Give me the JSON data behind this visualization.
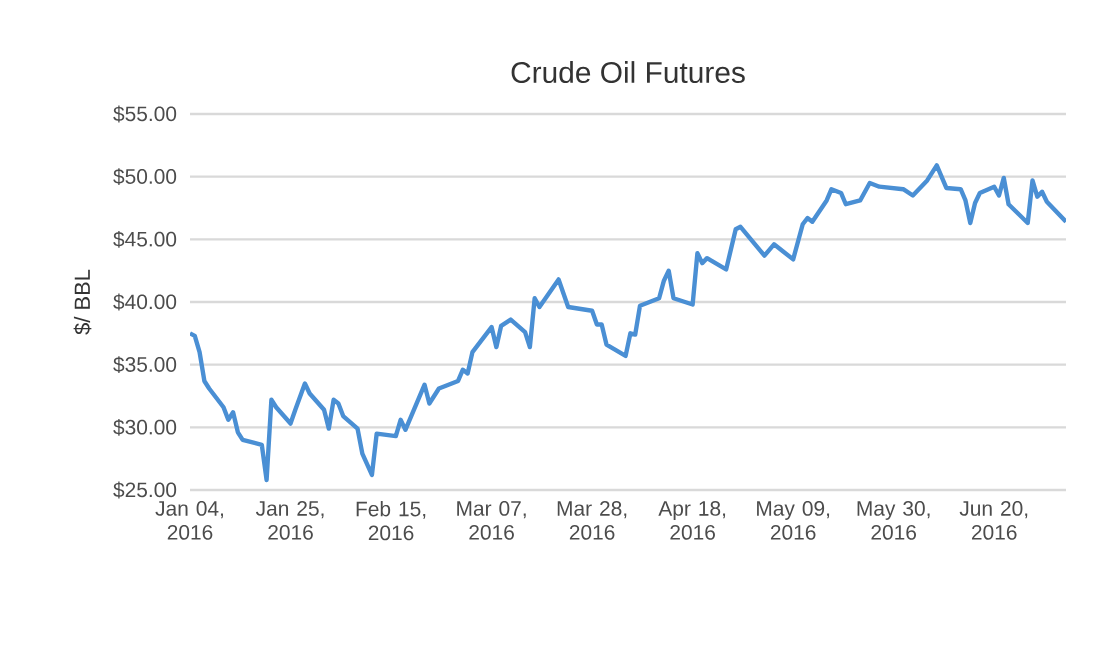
{
  "chart_data": {
    "type": "line",
    "title": "Crude Oil Futures",
    "ylabel": "$/ BBL",
    "xlim": [
      "2016-01-04",
      "2016-07-05"
    ],
    "ylim": [
      25,
      55
    ],
    "xticks": [
      {
        "value": "2016-01-04",
        "label": "Jan 04, 2016"
      },
      {
        "value": "2016-01-25",
        "label": "Jan 25, 2016"
      },
      {
        "value": "2016-02-15",
        "label": "Feb 15, 2016"
      },
      {
        "value": "2016-03-07",
        "label": "Mar 07, 2016"
      },
      {
        "value": "2016-03-28",
        "label": "Mar 28, 2016"
      },
      {
        "value": "2016-04-18",
        "label": "Apr 18, 2016"
      },
      {
        "value": "2016-05-09",
        "label": "May 09, 2016"
      },
      {
        "value": "2016-05-30",
        "label": "May 30, 2016"
      },
      {
        "value": "2016-06-20",
        "label": "Jun 20, 2016"
      }
    ],
    "yticks": [
      {
        "value": 25,
        "label": "$25.00"
      },
      {
        "value": 30,
        "label": "$30.00"
      },
      {
        "value": 35,
        "label": "$35.00"
      },
      {
        "value": 40,
        "label": "$40.00"
      },
      {
        "value": 45,
        "label": "$45.00"
      },
      {
        "value": 50,
        "label": "$50.00"
      },
      {
        "value": 55,
        "label": "$55.00"
      }
    ],
    "grid": "y",
    "line_style": "solid",
    "series": [
      {
        "color": "#4a8fd4",
        "x": [
          "2016-01-04",
          "2016-01-05",
          "2016-01-06",
          "2016-01-07",
          "2016-01-08",
          "2016-01-11",
          "2016-01-12",
          "2016-01-13",
          "2016-01-14",
          "2016-01-15",
          "2016-01-19",
          "2016-01-20",
          "2016-01-21",
          "2016-01-22",
          "2016-01-25",
          "2016-01-26",
          "2016-01-28",
          "2016-01-29",
          "2016-02-01",
          "2016-02-02",
          "2016-02-03",
          "2016-02-04",
          "2016-02-05",
          "2016-02-08",
          "2016-02-09",
          "2016-02-11",
          "2016-02-12",
          "2016-02-16",
          "2016-02-17",
          "2016-02-18",
          "2016-02-22",
          "2016-02-23",
          "2016-02-25",
          "2016-02-29",
          "2016-03-01",
          "2016-03-02",
          "2016-03-03",
          "2016-03-07",
          "2016-03-08",
          "2016-03-09",
          "2016-03-11",
          "2016-03-14",
          "2016-03-15",
          "2016-03-16",
          "2016-03-17",
          "2016-03-21",
          "2016-03-23",
          "2016-03-28",
          "2016-03-29",
          "2016-03-30",
          "2016-03-31",
          "2016-04-04",
          "2016-04-05",
          "2016-04-06",
          "2016-04-07",
          "2016-04-11",
          "2016-04-12",
          "2016-04-13",
          "2016-04-14",
          "2016-04-18",
          "2016-04-19",
          "2016-04-20",
          "2016-04-21",
          "2016-04-25",
          "2016-04-27",
          "2016-04-28",
          "2016-05-03",
          "2016-05-05",
          "2016-05-09",
          "2016-05-11",
          "2016-05-12",
          "2016-05-13",
          "2016-05-16",
          "2016-05-17",
          "2016-05-19",
          "2016-05-20",
          "2016-05-23",
          "2016-05-25",
          "2016-05-27",
          "2016-06-01",
          "2016-06-03",
          "2016-06-06",
          "2016-06-08",
          "2016-06-10",
          "2016-06-13",
          "2016-06-14",
          "2016-06-15",
          "2016-06-16",
          "2016-06-17",
          "2016-06-20",
          "2016-06-21",
          "2016-06-22",
          "2016-06-23",
          "2016-06-27",
          "2016-06-28",
          "2016-06-29",
          "2016-06-30",
          "2016-07-01",
          "2016-07-05"
        ],
        "values": [
          37.5,
          37.3,
          36.0,
          33.7,
          33.1,
          31.6,
          30.6,
          31.2,
          29.6,
          29.0,
          28.6,
          25.8,
          32.2,
          31.6,
          30.3,
          31.4,
          33.5,
          32.7,
          31.4,
          29.9,
          32.2,
          31.9,
          30.9,
          29.9,
          27.9,
          26.2,
          29.5,
          29.3,
          30.6,
          29.8,
          33.4,
          31.9,
          33.1,
          33.7,
          34.6,
          34.3,
          36.0,
          38.0,
          36.4,
          38.1,
          38.6,
          37.6,
          36.4,
          40.3,
          39.6,
          41.8,
          39.6,
          39.3,
          38.2,
          38.2,
          36.6,
          35.7,
          37.5,
          37.4,
          39.7,
          40.3,
          41.7,
          42.5,
          40.3,
          39.8,
          43.9,
          43.1,
          43.5,
          42.6,
          45.8,
          46.0,
          43.7,
          44.6,
          43.4,
          46.2,
          46.7,
          46.4,
          48.1,
          49.0,
          48.7,
          47.8,
          48.1,
          49.5,
          49.2,
          49.0,
          48.5,
          49.7,
          50.9,
          49.1,
          49.0,
          48.1,
          46.3,
          47.9,
          48.7,
          49.2,
          48.5,
          49.9,
          47.8,
          46.3,
          49.7,
          48.4,
          48.8,
          48.0,
          46.4
        ]
      }
    ]
  }
}
